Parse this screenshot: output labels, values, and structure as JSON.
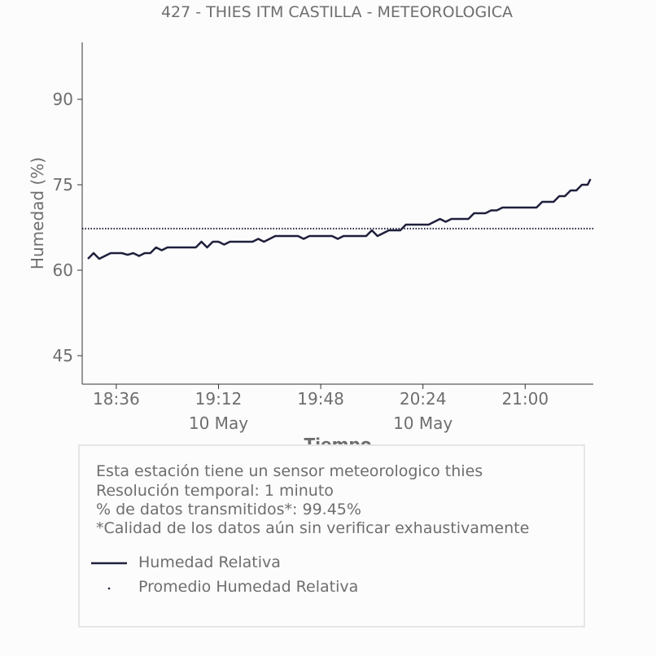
{
  "chart_data": {
    "type": "line",
    "title": "427 - THIES ITM CASTILLA - METEOROLOGICA",
    "xlabel": "Tiempo",
    "ylabel": "Humedad (%)",
    "x_range": [
      "2024-05-10T18:24",
      "2024-05-10T21:24"
    ],
    "ylim": [
      40,
      100
    ],
    "y_ticks": [
      45,
      60,
      75,
      90
    ],
    "x_ticks": [
      {
        "t": "18:36",
        "label": "18:36",
        "sublabel": ""
      },
      {
        "t": "19:12",
        "label": "19:12",
        "sublabel": "10 May"
      },
      {
        "t": "19:48",
        "label": "19:48",
        "sublabel": ""
      },
      {
        "t": "20:24",
        "label": "20:24",
        "sublabel": "10 May"
      },
      {
        "t": "21:00",
        "label": "21:00",
        "sublabel": ""
      }
    ],
    "grid": false,
    "series": [
      {
        "name": "Humedad Relativa",
        "style": "solid",
        "color": "#1f1f3d",
        "points": [
          [
            "18:26",
            62.0
          ],
          [
            "18:28",
            63.0
          ],
          [
            "18:30",
            62.0
          ],
          [
            "18:32",
            62.5
          ],
          [
            "18:34",
            63.0
          ],
          [
            "18:38",
            63.0
          ],
          [
            "18:40",
            62.7
          ],
          [
            "18:42",
            63.0
          ],
          [
            "18:44",
            62.5
          ],
          [
            "18:46",
            63.0
          ],
          [
            "18:48",
            63.0
          ],
          [
            "18:50",
            64.0
          ],
          [
            "18:52",
            63.5
          ],
          [
            "18:54",
            64.0
          ],
          [
            "19:04",
            64.0
          ],
          [
            "19:06",
            65.0
          ],
          [
            "19:08",
            64.0
          ],
          [
            "19:10",
            65.0
          ],
          [
            "19:12",
            65.0
          ],
          [
            "19:14",
            64.5
          ],
          [
            "19:16",
            65.0
          ],
          [
            "19:24",
            65.0
          ],
          [
            "19:26",
            65.5
          ],
          [
            "19:28",
            65.0
          ],
          [
            "19:30",
            65.5
          ],
          [
            "19:32",
            66.0
          ],
          [
            "19:40",
            66.0
          ],
          [
            "19:42",
            65.5
          ],
          [
            "19:44",
            66.0
          ],
          [
            "19:52",
            66.0
          ],
          [
            "19:54",
            65.5
          ],
          [
            "19:56",
            66.0
          ],
          [
            "20:04",
            66.0
          ],
          [
            "20:06",
            67.0
          ],
          [
            "20:08",
            66.0
          ],
          [
            "20:10",
            66.5
          ],
          [
            "20:12",
            67.0
          ],
          [
            "20:16",
            67.0
          ],
          [
            "20:18",
            68.0
          ],
          [
            "20:26",
            68.0
          ],
          [
            "20:28",
            68.5
          ],
          [
            "20:30",
            69.0
          ],
          [
            "20:32",
            68.5
          ],
          [
            "20:34",
            69.0
          ],
          [
            "20:40",
            69.0
          ],
          [
            "20:42",
            70.0
          ],
          [
            "20:46",
            70.0
          ],
          [
            "20:48",
            70.5
          ],
          [
            "20:50",
            70.5
          ],
          [
            "20:52",
            71.0
          ],
          [
            "21:04",
            71.0
          ],
          [
            "21:06",
            72.0
          ],
          [
            "21:10",
            72.0
          ],
          [
            "21:12",
            73.0
          ],
          [
            "21:14",
            73.0
          ],
          [
            "21:16",
            74.0
          ],
          [
            "21:18",
            74.0
          ],
          [
            "21:20",
            75.0
          ],
          [
            "21:22",
            75.0
          ],
          [
            "21:23",
            76.0
          ]
        ]
      },
      {
        "name": "Promedio Humedad Relativa",
        "style": "dotted",
        "color": "#1f1f3d",
        "constant": 67.3
      }
    ]
  },
  "info": {
    "lines": [
      "Esta estación tiene un sensor meteorologico thies",
      "Resolución temporal: 1 minuto",
      "% de datos transmitidos*: 99.45%",
      "*Calidad de los datos aún sin verificar exhaustivamente"
    ]
  },
  "legend": {
    "items": [
      {
        "label": "Humedad Relativa"
      },
      {
        "label": "Promedio Humedad Relativa"
      }
    ]
  }
}
